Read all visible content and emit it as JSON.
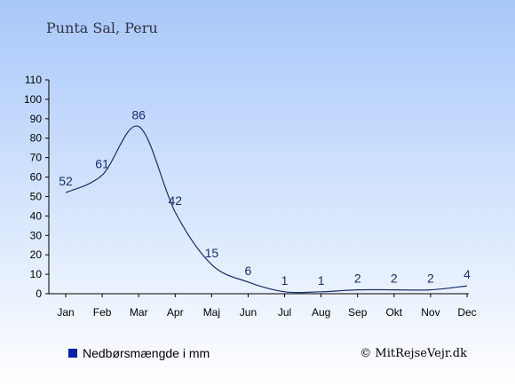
{
  "header": {
    "title": "Punta Sal, Peru"
  },
  "legend": {
    "label": "Nedbørsmængde i mm",
    "color": "#0b1fa8"
  },
  "credit": {
    "text": "© MitRejseVejr.dk"
  },
  "colors": {
    "bg_top": "#a8c8fa",
    "bg_bottom": "#ffffff",
    "line": "#1a2e6e",
    "axis": "#000000"
  },
  "chart_data": {
    "type": "line",
    "categories": [
      "Jan",
      "Feb",
      "Mar",
      "Apr",
      "Maj",
      "Jun",
      "Jul",
      "Aug",
      "Sep",
      "Okt",
      "Nov",
      "Dec"
    ],
    "series": [
      {
        "name": "Nedbørsmængde i mm",
        "values": [
          52,
          61,
          86,
          42,
          15,
          6,
          1,
          1,
          2,
          2,
          2,
          4
        ]
      }
    ],
    "ylim": [
      0,
      110
    ],
    "yticks": [
      0,
      10,
      20,
      30,
      40,
      50,
      60,
      70,
      80,
      90,
      100,
      110
    ],
    "grid": false,
    "legend_position": "bottom-left"
  }
}
